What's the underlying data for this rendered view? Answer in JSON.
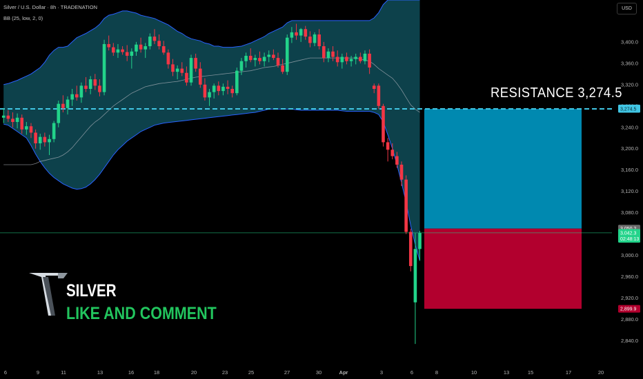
{
  "header": {
    "symbol_line": "Silver / U.S. Dollar · 8h · TRADENATION",
    "indicator_line": "BB (25, low, 2, 0)"
  },
  "currency_button": "USD",
  "annotations": {
    "resistance_label": "RESISTANCE  3,274.5",
    "brand": "SILVER",
    "cta": "LIKE AND COMMENT"
  },
  "colors": {
    "bull": "#22d38a",
    "bear": "#f23645",
    "band_fill": "#0f4c58",
    "band_line": "#2962ff",
    "basis_line": "#b2b5be",
    "resistance_line": "#41c6e4",
    "target_zone": "#0089b0",
    "stop_zone": "#b2002e"
  },
  "chart_data": {
    "type": "candlestick",
    "symbol": "Silver / U.S. Dollar",
    "timeframe": "8h",
    "y_ticks": [
      "2,840.0",
      "2,880.0",
      "2,920.0",
      "2,960.0",
      "3,000.0",
      "3,040.0",
      "3,080.0",
      "3,120.0",
      "3,160.0",
      "3,200.0",
      "3,240.0",
      "3,280.0",
      "3,320.0",
      "3,360.0",
      "3,400.0"
    ],
    "ylim": [
      2820,
      3445
    ],
    "x_ticks": [
      "6",
      "9",
      "11",
      "13",
      "16",
      "18",
      "20",
      "23",
      "25",
      "27",
      "30",
      "Apr",
      "3",
      "6",
      "8",
      "10",
      "13",
      "15",
      "17",
      "20"
    ],
    "price_labels": [
      {
        "text": "3,275.3",
        "value": 3275.3,
        "style": "resistance"
      },
      {
        "text": "3,274.5",
        "value": 3274.5,
        "style": "resistance"
      },
      {
        "text": "3,050.2",
        "value": 3050.2,
        "style": "gray"
      },
      {
        "text": "3,042.3",
        "value": 3042.3,
        "style": "bull"
      },
      {
        "text": "02:48:13",
        "value": 3031,
        "style": "bull"
      },
      {
        "text": "2,899.9",
        "value": 2899.9,
        "style": "bear"
      }
    ],
    "resistance": 3274.5,
    "last_price": 3042.3,
    "target_zone": {
      "from": 3050.2,
      "to": 3274.5
    },
    "stop_zone": {
      "from": 2899.9,
      "to": 3050.2
    },
    "candles": [
      {
        "o": 3258,
        "h": 3276,
        "l": 3248,
        "c": 3262
      },
      {
        "o": 3262,
        "h": 3272,
        "l": 3250,
        "c": 3256
      },
      {
        "o": 3256,
        "h": 3268,
        "l": 3240,
        "c": 3250
      },
      {
        "o": 3250,
        "h": 3266,
        "l": 3238,
        "c": 3258
      },
      {
        "o": 3258,
        "h": 3264,
        "l": 3228,
        "c": 3236
      },
      {
        "o": 3236,
        "h": 3250,
        "l": 3226,
        "c": 3242
      },
      {
        "o": 3242,
        "h": 3248,
        "l": 3220,
        "c": 3230
      },
      {
        "o": 3230,
        "h": 3236,
        "l": 3200,
        "c": 3210
      },
      {
        "o": 3210,
        "h": 3228,
        "l": 3198,
        "c": 3222
      },
      {
        "o": 3222,
        "h": 3230,
        "l": 3204,
        "c": 3212
      },
      {
        "o": 3212,
        "h": 3226,
        "l": 3188,
        "c": 3218
      },
      {
        "o": 3218,
        "h": 3252,
        "l": 3212,
        "c": 3248
      },
      {
        "o": 3248,
        "h": 3290,
        "l": 3240,
        "c": 3284
      },
      {
        "o": 3284,
        "h": 3300,
        "l": 3268,
        "c": 3276
      },
      {
        "o": 3276,
        "h": 3298,
        "l": 3264,
        "c": 3292
      },
      {
        "o": 3292,
        "h": 3312,
        "l": 3280,
        "c": 3302
      },
      {
        "o": 3302,
        "h": 3318,
        "l": 3290,
        "c": 3296
      },
      {
        "o": 3296,
        "h": 3324,
        "l": 3286,
        "c": 3318
      },
      {
        "o": 3318,
        "h": 3334,
        "l": 3306,
        "c": 3312
      },
      {
        "o": 3312,
        "h": 3336,
        "l": 3302,
        "c": 3330
      },
      {
        "o": 3330,
        "h": 3340,
        "l": 3310,
        "c": 3318
      },
      {
        "o": 3318,
        "h": 3330,
        "l": 3298,
        "c": 3306
      },
      {
        "o": 3306,
        "h": 3404,
        "l": 3300,
        "c": 3396
      },
      {
        "o": 3396,
        "h": 3412,
        "l": 3384,
        "c": 3390
      },
      {
        "o": 3390,
        "h": 3398,
        "l": 3374,
        "c": 3380
      },
      {
        "o": 3380,
        "h": 3396,
        "l": 3370,
        "c": 3386
      },
      {
        "o": 3386,
        "h": 3392,
        "l": 3376,
        "c": 3381
      },
      {
        "o": 3381,
        "h": 3394,
        "l": 3364,
        "c": 3374
      },
      {
        "o": 3374,
        "h": 3388,
        "l": 3350,
        "c": 3382
      },
      {
        "o": 3382,
        "h": 3400,
        "l": 3374,
        "c": 3395
      },
      {
        "o": 3395,
        "h": 3408,
        "l": 3380,
        "c": 3386
      },
      {
        "o": 3386,
        "h": 3398,
        "l": 3370,
        "c": 3392
      },
      {
        "o": 3392,
        "h": 3416,
        "l": 3386,
        "c": 3410
      },
      {
        "o": 3410,
        "h": 3424,
        "l": 3396,
        "c": 3402
      },
      {
        "o": 3402,
        "h": 3414,
        "l": 3386,
        "c": 3392
      },
      {
        "o": 3392,
        "h": 3402,
        "l": 3376,
        "c": 3380
      },
      {
        "o": 3380,
        "h": 3386,
        "l": 3350,
        "c": 3358
      },
      {
        "o": 3358,
        "h": 3368,
        "l": 3336,
        "c": 3344
      },
      {
        "o": 3344,
        "h": 3356,
        "l": 3330,
        "c": 3350
      },
      {
        "o": 3350,
        "h": 3362,
        "l": 3336,
        "c": 3342
      },
      {
        "o": 3342,
        "h": 3354,
        "l": 3318,
        "c": 3324
      },
      {
        "o": 3324,
        "h": 3376,
        "l": 3318,
        "c": 3370
      },
      {
        "o": 3370,
        "h": 3378,
        "l": 3344,
        "c": 3350
      },
      {
        "o": 3350,
        "h": 3362,
        "l": 3314,
        "c": 3320
      },
      {
        "o": 3320,
        "h": 3332,
        "l": 3290,
        "c": 3296
      },
      {
        "o": 3296,
        "h": 3312,
        "l": 3280,
        "c": 3306
      },
      {
        "o": 3306,
        "h": 3322,
        "l": 3294,
        "c": 3318
      },
      {
        "o": 3318,
        "h": 3326,
        "l": 3300,
        "c": 3308
      },
      {
        "o": 3308,
        "h": 3322,
        "l": 3300,
        "c": 3316
      },
      {
        "o": 3316,
        "h": 3328,
        "l": 3302,
        "c": 3312
      },
      {
        "o": 3312,
        "h": 3318,
        "l": 3296,
        "c": 3304
      },
      {
        "o": 3304,
        "h": 3352,
        "l": 3300,
        "c": 3346
      },
      {
        "o": 3346,
        "h": 3370,
        "l": 3338,
        "c": 3364
      },
      {
        "o": 3364,
        "h": 3380,
        "l": 3352,
        "c": 3374
      },
      {
        "o": 3374,
        "h": 3388,
        "l": 3362,
        "c": 3366
      },
      {
        "o": 3366,
        "h": 3376,
        "l": 3354,
        "c": 3370
      },
      {
        "o": 3370,
        "h": 3382,
        "l": 3358,
        "c": 3364
      },
      {
        "o": 3364,
        "h": 3380,
        "l": 3354,
        "c": 3372
      },
      {
        "o": 3372,
        "h": 3384,
        "l": 3362,
        "c": 3376
      },
      {
        "o": 3376,
        "h": 3386,
        "l": 3366,
        "c": 3370
      },
      {
        "o": 3370,
        "h": 3380,
        "l": 3352,
        "c": 3356
      },
      {
        "o": 3356,
        "h": 3368,
        "l": 3340,
        "c": 3344
      },
      {
        "o": 3344,
        "h": 3414,
        "l": 3338,
        "c": 3408
      },
      {
        "o": 3408,
        "h": 3428,
        "l": 3398,
        "c": 3418
      },
      {
        "o": 3418,
        "h": 3434,
        "l": 3404,
        "c": 3412
      },
      {
        "o": 3412,
        "h": 3426,
        "l": 3400,
        "c": 3424
      },
      {
        "o": 3424,
        "h": 3430,
        "l": 3404,
        "c": 3410
      },
      {
        "o": 3410,
        "h": 3420,
        "l": 3390,
        "c": 3398
      },
      {
        "o": 3398,
        "h": 3418,
        "l": 3392,
        "c": 3414
      },
      {
        "o": 3414,
        "h": 3424,
        "l": 3386,
        "c": 3392
      },
      {
        "o": 3392,
        "h": 3400,
        "l": 3362,
        "c": 3370
      },
      {
        "o": 3370,
        "h": 3388,
        "l": 3362,
        "c": 3382
      },
      {
        "o": 3382,
        "h": 3392,
        "l": 3364,
        "c": 3372
      },
      {
        "o": 3372,
        "h": 3384,
        "l": 3354,
        "c": 3362
      },
      {
        "o": 3362,
        "h": 3378,
        "l": 3350,
        "c": 3372
      },
      {
        "o": 3372,
        "h": 3380,
        "l": 3358,
        "c": 3364
      },
      {
        "o": 3364,
        "h": 3374,
        "l": 3354,
        "c": 3368
      },
      {
        "o": 3368,
        "h": 3378,
        "l": 3358,
        "c": 3372
      },
      {
        "o": 3372,
        "h": 3380,
        "l": 3360,
        "c": 3364
      },
      {
        "o": 3364,
        "h": 3384,
        "l": 3358,
        "c": 3378
      },
      {
        "o": 3378,
        "h": 3386,
        "l": 3340,
        "c": 3352
      },
      {
        "o": 3318,
        "h": 3322,
        "l": 3304,
        "c": 3312
      },
      {
        "o": 3318,
        "h": 3322,
        "l": 3274,
        "c": 3280
      },
      {
        "o": 3280,
        "h": 3284,
        "l": 3204,
        "c": 3212
      },
      {
        "o": 3212,
        "h": 3220,
        "l": 3176,
        "c": 3198
      },
      {
        "o": 3198,
        "h": 3210,
        "l": 3180,
        "c": 3186
      },
      {
        "o": 3186,
        "h": 3194,
        "l": 3164,
        "c": 3170
      },
      {
        "o": 3170,
        "h": 3176,
        "l": 3130,
        "c": 3142
      },
      {
        "o": 3142,
        "h": 3150,
        "l": 3040,
        "c": 3044
      },
      {
        "o": 3044,
        "h": 3050,
        "l": 2970,
        "c": 2980
      },
      {
        "o": 2912,
        "h": 3042,
        "l": 2834,
        "c": 3012
      },
      {
        "o": 3012,
        "h": 3046,
        "l": 2990,
        "c": 3042
      }
    ],
    "bollinger": {
      "period": 25,
      "source": "low",
      "mult": 2,
      "upper": [
        3320,
        3322,
        3325,
        3328,
        3332,
        3336,
        3340,
        3346,
        3352,
        3362,
        3375,
        3384,
        3390,
        3390,
        3392,
        3400,
        3408,
        3412,
        3416,
        3421,
        3426,
        3433,
        3444,
        3450,
        3452,
        3455,
        3458,
        3458,
        3456,
        3454,
        3450,
        3448,
        3446,
        3444,
        3440,
        3436,
        3432,
        3426,
        3420,
        3416,
        3410,
        3406,
        3404,
        3402,
        3398,
        3396,
        3392,
        3392,
        3390,
        3390,
        3390,
        3391,
        3392,
        3395,
        3398,
        3402,
        3406,
        3410,
        3416,
        3420,
        3424,
        3428,
        3436,
        3440,
        3440,
        3440,
        3440,
        3440,
        3440,
        3440,
        3440,
        3440,
        3440,
        3440,
        3440,
        3440,
        3440,
        3440,
        3440,
        3440,
        3440,
        3445,
        3455,
        3470,
        3480,
        3490,
        3500,
        3500,
        3500,
        3500,
        3500,
        3500
      ],
      "basis": [
        3170,
        3170,
        3170,
        3170,
        3170,
        3170,
        3170,
        3172,
        3176,
        3178,
        3180,
        3182,
        3184,
        3188,
        3194,
        3202,
        3212,
        3222,
        3232,
        3242,
        3250,
        3256,
        3264,
        3272,
        3280,
        3286,
        3292,
        3298,
        3304,
        3308,
        3312,
        3316,
        3318,
        3320,
        3322,
        3323,
        3324,
        3325,
        3326,
        3328,
        3330,
        3332,
        3334,
        3335,
        3336,
        3337,
        3338,
        3339,
        3340,
        3341,
        3342,
        3343,
        3344,
        3345,
        3346,
        3348,
        3350,
        3352,
        3353,
        3354,
        3356,
        3358,
        3360,
        3362,
        3364,
        3366,
        3368,
        3370,
        3370,
        3370,
        3370,
        3370,
        3370,
        3370,
        3370,
        3370,
        3370,
        3370,
        3368,
        3366,
        3364,
        3358,
        3350,
        3344,
        3338,
        3332,
        3322,
        3310,
        3296,
        3282,
        3274,
        3268
      ],
      "lower": [
        3246,
        3244,
        3238,
        3232,
        3226,
        3220,
        3206,
        3190,
        3176,
        3164,
        3154,
        3146,
        3140,
        3134,
        3130,
        3126,
        3124,
        3125,
        3128,
        3134,
        3142,
        3152,
        3164,
        3176,
        3188,
        3198,
        3206,
        3214,
        3220,
        3226,
        3232,
        3236,
        3240,
        3244,
        3246,
        3248,
        3249,
        3250,
        3251,
        3252,
        3253,
        3254,
        3255,
        3256,
        3257,
        3258,
        3259,
        3260,
        3261,
        3262,
        3263,
        3264,
        3265,
        3266,
        3267,
        3268,
        3270,
        3272,
        3274,
        3274,
        3274,
        3274,
        3274,
        3274,
        3273,
        3272,
        3272,
        3272,
        3272,
        3272,
        3272,
        3272,
        3272,
        3272,
        3271,
        3270,
        3270,
        3270,
        3270,
        3270,
        3270,
        3268,
        3264,
        3250,
        3226,
        3200,
        3170,
        3136,
        3100,
        3056,
        3020,
        2990
      ]
    }
  }
}
